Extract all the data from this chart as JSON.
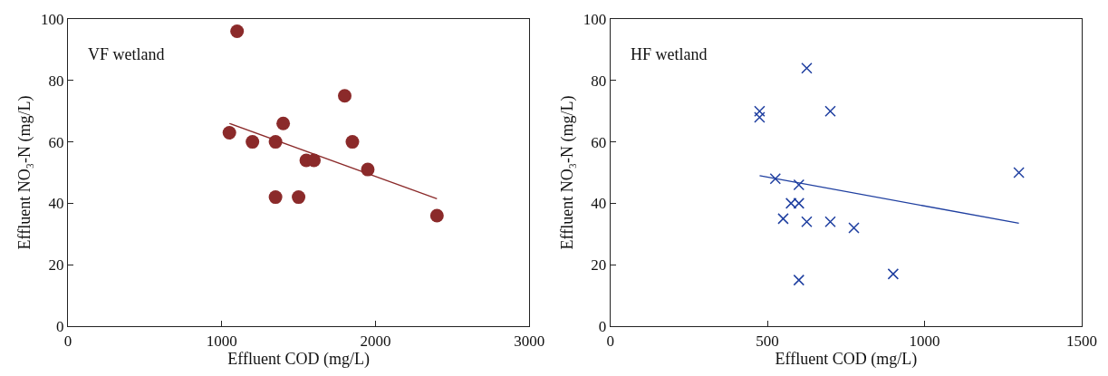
{
  "chart_data": [
    {
      "type": "scatter",
      "xlabel": "Effluent COD (mg/L)",
      "ylabel": "Effluent NO₃-N (mg/L)",
      "annotations": [
        "VF wetland"
      ],
      "xlim": [
        0,
        3000
      ],
      "xticks": [
        0,
        1000,
        2000,
        3000
      ],
      "ylim": [
        0,
        100
      ],
      "yticks": [
        0,
        20,
        40,
        60,
        80,
        100
      ],
      "series": [
        {
          "color": "#8b2a2a",
          "marker": "circle",
          "x": [
            1050,
            1100,
            1200,
            1350,
            1400,
            1350,
            1500,
            1550,
            1600,
            1800,
            1850,
            1950,
            2400
          ],
          "values": [
            63,
            96,
            60,
            60,
            66,
            42,
            42,
            54,
            54,
            75,
            60,
            51,
            36
          ]
        },
        {
          "type": "line",
          "color": "#8b2a2a",
          "marker": "none",
          "x": [
            1050,
            2400
          ],
          "values": [
            66,
            41.5
          ]
        }
      ]
    },
    {
      "type": "scatter",
      "xlabel": "Effluent COD (mg/L)",
      "ylabel": "Effluent NO₃-N (mg/L)",
      "annotations": [
        "HF wetland"
      ],
      "xlim": [
        0,
        1500
      ],
      "xticks": [
        0,
        500,
        1000,
        1500
      ],
      "ylim": [
        0,
        100
      ],
      "yticks": [
        0,
        20,
        40,
        60,
        80,
        100
      ],
      "series": [
        {
          "color": "#1f3fa0",
          "marker": "cross",
          "x": [
            475,
            475,
            525,
            550,
            575,
            600,
            600,
            600,
            625,
            625,
            700,
            700,
            775,
            900,
            1300
          ],
          "values": [
            70,
            68,
            48,
            35,
            40,
            40,
            46,
            15,
            84,
            34,
            70,
            34,
            32,
            17,
            50
          ]
        },
        {
          "type": "line",
          "color": "#1f3fa0",
          "marker": "none",
          "x": [
            475,
            1300
          ],
          "values": [
            49,
            33.5
          ]
        }
      ]
    }
  ]
}
